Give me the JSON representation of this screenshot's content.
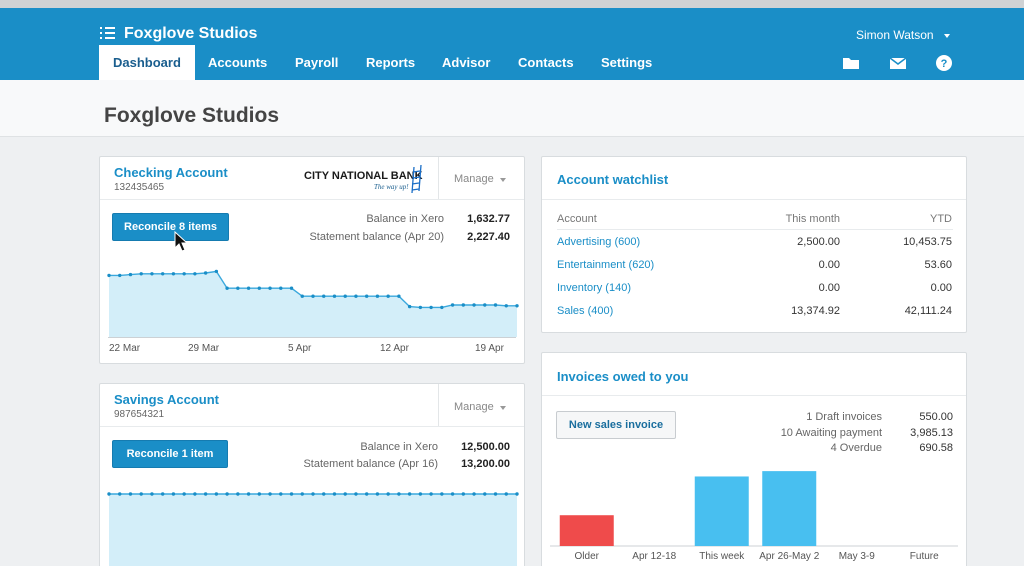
{
  "header": {
    "org_name": "Foxglove Studios",
    "user": "Simon Watson",
    "nav": [
      "Dashboard",
      "Accounts",
      "Payroll",
      "Reports",
      "Advisor",
      "Contacts",
      "Settings"
    ],
    "icons": [
      "folder-icon",
      "mail-icon",
      "help-icon"
    ]
  },
  "page": {
    "title": "Foxglove Studios"
  },
  "checking": {
    "title": "Checking Account",
    "number": "132435465",
    "bank_logo": "CITY NATIONAL BANK",
    "bank_tagline": "The way up!",
    "manage": "Manage",
    "reconcile": "Reconcile 8 items",
    "balance_xero_label": "Balance in Xero",
    "balance_xero": "1,632.77",
    "statement_label": "Statement balance (Apr 20)",
    "statement": "2,227.40",
    "x_labels": [
      "22 Mar",
      "29 Mar",
      "5 Apr",
      "12 Apr",
      "19 Apr"
    ],
    "balance_series": [
      7.7,
      7.7,
      7.8,
      7.9,
      7.9,
      7.9,
      7.9,
      7.9,
      7.9,
      8.0,
      8.2,
      6.1,
      6.1,
      6.1,
      6.1,
      6.1,
      6.1,
      6.1,
      5.1,
      5.1,
      5.1,
      5.1,
      5.1,
      5.1,
      5.1,
      5.1,
      5.1,
      5.1,
      3.8,
      3.7,
      3.7,
      3.7,
      4.0,
      4.0,
      4.0,
      4.0,
      4.0,
      3.9,
      3.9
    ]
  },
  "savings": {
    "title": "Savings Account",
    "number": "987654321",
    "manage": "Manage",
    "reconcile": "Reconcile 1 item",
    "balance_xero_label": "Balance in Xero",
    "balance_xero": "12,500.00",
    "statement_label": "Statement balance (Apr 16)",
    "statement": "13,200.00",
    "balance_series": [
      10,
      10,
      10,
      10,
      10,
      10,
      10,
      10,
      10,
      10,
      10,
      10,
      10,
      10,
      10,
      10,
      10,
      10,
      10,
      10,
      10,
      10,
      10,
      10,
      10,
      10,
      10,
      10,
      10,
      10,
      10,
      10,
      10,
      10,
      10,
      10,
      10,
      10,
      10
    ]
  },
  "watchlist": {
    "title": "Account watchlist",
    "columns": [
      "Account",
      "This month",
      "YTD"
    ],
    "rows": [
      {
        "account": "Advertising (600)",
        "month": "2,500.00",
        "ytd": "10,453.75"
      },
      {
        "account": "Entertainment (620)",
        "month": "0.00",
        "ytd": "53.60"
      },
      {
        "account": "Inventory (140)",
        "month": "0.00",
        "ytd": "0.00"
      },
      {
        "account": "Sales (400)",
        "month": "13,374.92",
        "ytd": "42,111.24"
      }
    ]
  },
  "invoices": {
    "title": "Invoices owed to you",
    "new_button": "New sales invoice",
    "summary": [
      {
        "label": "1 Draft invoices",
        "value": "550.00"
      },
      {
        "label": "10 Awaiting payment",
        "value": "3,985.13"
      },
      {
        "label": "4 Overdue",
        "value": "690.58"
      }
    ]
  },
  "chart_data": {
    "type": "bar",
    "categories": [
      "Older",
      "Apr 12-18",
      "This week",
      "Apr 26-May 2",
      "May 3-9",
      "Future"
    ],
    "values": [
      690.58,
      0,
      1560,
      1680,
      0,
      0
    ],
    "colors": [
      "#ef4b4b",
      "#48bff0",
      "#48bff0",
      "#48bff0",
      "#48bff0",
      "#48bff0"
    ]
  },
  "colors": {
    "brand": "#1a8ec7",
    "overdue": "#ef4b4b",
    "bar": "#48bff0",
    "area": "#d3eef9"
  }
}
